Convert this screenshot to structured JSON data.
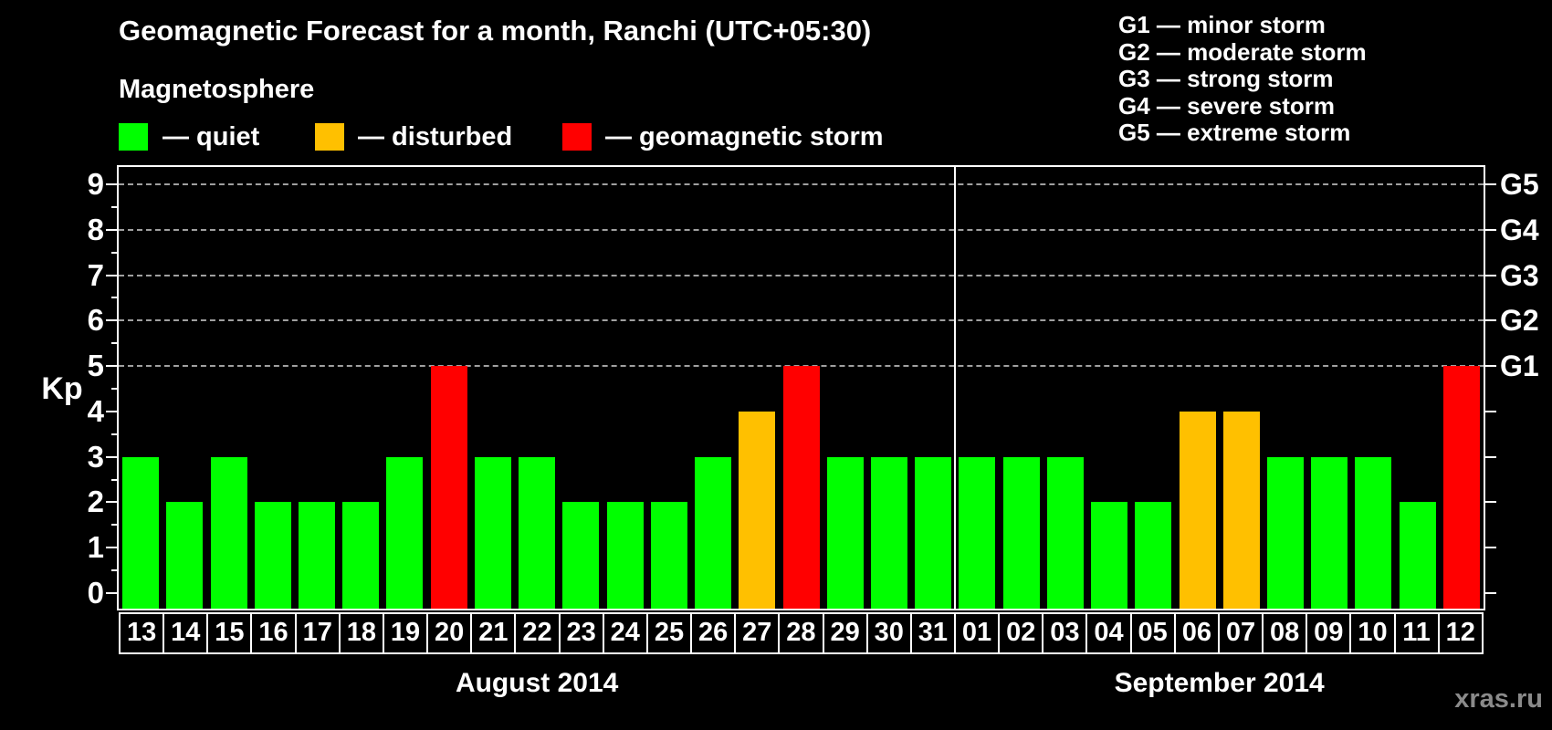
{
  "title": "Geomagnetic Forecast for a month, Ranchi (UTC+05:30)",
  "watermark": "xras.ru",
  "g_scale": {
    "items": [
      "G1 — minor storm",
      "G2 — moderate storm",
      "G3 — strong storm",
      "G4 — severe storm",
      "G5 — extreme storm"
    ]
  },
  "legend": {
    "title": "Magnetosphere",
    "items": [
      {
        "key": "quiet",
        "label": "— quiet",
        "color": "#00ff00"
      },
      {
        "key": "disturbed",
        "label": "— disturbed",
        "color": "#ffc000"
      },
      {
        "key": "storm",
        "label": "— geomagnetic storm",
        "color": "#ff0000"
      }
    ]
  },
  "axis": {
    "y_label": "Kp",
    "y_ticks": [
      0,
      1,
      2,
      3,
      4,
      5,
      6,
      7,
      8,
      9
    ],
    "right_labels": [
      {
        "kp": 5,
        "label": "G1"
      },
      {
        "kp": 6,
        "label": "G2"
      },
      {
        "kp": 7,
        "label": "G3"
      },
      {
        "kp": 8,
        "label": "G4"
      },
      {
        "kp": 9,
        "label": "G5"
      }
    ]
  },
  "colors": {
    "background": "#000000",
    "quiet": "#00ff00",
    "disturbed": "#ffc000",
    "storm": "#ff0000",
    "grid": "#a0a0a0",
    "axis": "#ffffff",
    "watermark": "#8a8a8a"
  },
  "chart_data": {
    "type": "bar",
    "title": "Geomagnetic Forecast for a month, Ranchi (UTC+05:30)",
    "xlabel": "",
    "ylabel": "Kp",
    "ylim": [
      0,
      9.5
    ],
    "grid": "dashed horizontal at Kp 5-9",
    "grid_levels_kp": [
      5,
      6,
      7,
      8,
      9
    ],
    "legend_position": "top-left",
    "months": [
      {
        "name": "August 2014",
        "days": [
          "13",
          "14",
          "15",
          "16",
          "17",
          "18",
          "19",
          "20",
          "21",
          "22",
          "23",
          "24",
          "25",
          "26",
          "27",
          "28",
          "29",
          "30",
          "31"
        ],
        "values": [
          3,
          2,
          3,
          2,
          2,
          2,
          3,
          5,
          3,
          3,
          2,
          2,
          2,
          3,
          4,
          5,
          3,
          3,
          3
        ],
        "status": [
          "quiet",
          "quiet",
          "quiet",
          "quiet",
          "quiet",
          "quiet",
          "quiet",
          "storm",
          "quiet",
          "quiet",
          "quiet",
          "quiet",
          "quiet",
          "quiet",
          "disturbed",
          "storm",
          "quiet",
          "quiet",
          "quiet"
        ]
      },
      {
        "name": "September 2014",
        "days": [
          "01",
          "02",
          "03",
          "04",
          "05",
          "06",
          "07",
          "08",
          "09",
          "10",
          "11",
          "12"
        ],
        "values": [
          3,
          3,
          3,
          2,
          2,
          4,
          4,
          3,
          3,
          3,
          2,
          5
        ],
        "status": [
          "quiet",
          "quiet",
          "quiet",
          "quiet",
          "quiet",
          "disturbed",
          "disturbed",
          "quiet",
          "quiet",
          "quiet",
          "quiet",
          "storm"
        ]
      }
    ]
  }
}
